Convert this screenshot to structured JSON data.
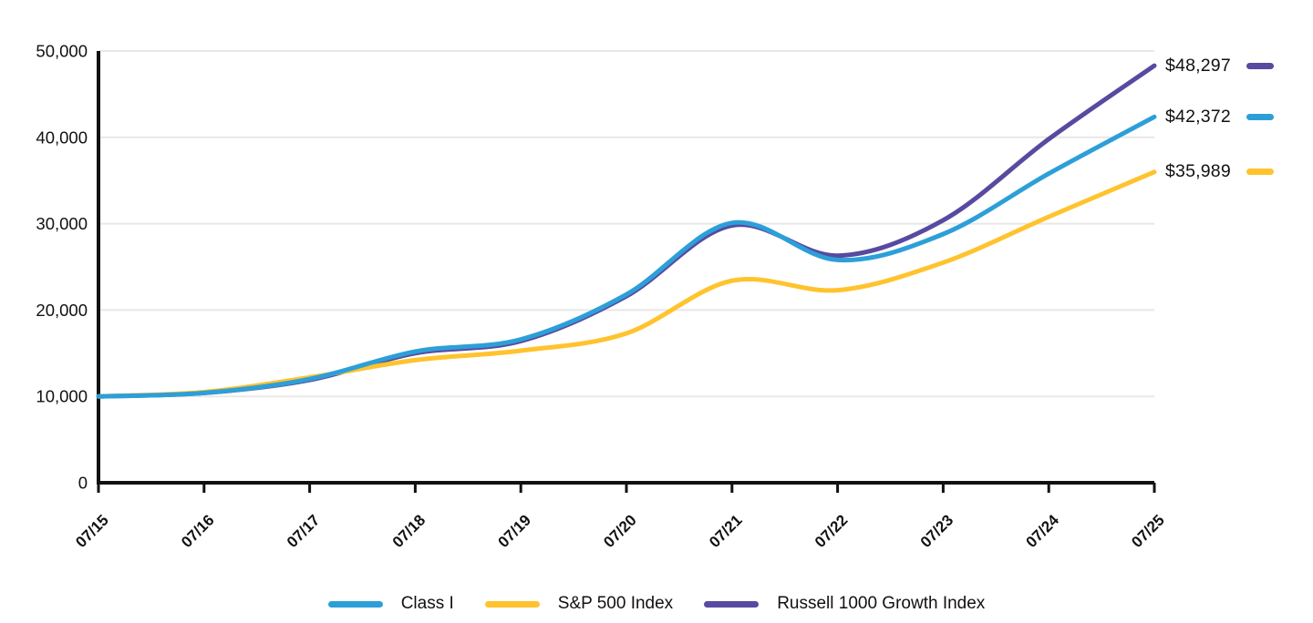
{
  "chart_data": {
    "type": "line",
    "categories": [
      "07/15",
      "07/16",
      "07/17",
      "07/18",
      "07/19",
      "07/20",
      "07/21",
      "07/22",
      "07/23",
      "07/24",
      "07/25"
    ],
    "y_ticks": [
      "0",
      "10,000",
      "20,000",
      "30,000",
      "40,000",
      "50,000"
    ],
    "ylim": [
      0,
      50000
    ],
    "grid": "horizontal",
    "legend_position": "bottom",
    "axis_color": "#111111",
    "gridline_color": "#e8e8e8",
    "series": [
      {
        "name": "Class I",
        "color": "#2D9FD8",
        "values": [
          10000,
          10400,
          12000,
          15200,
          16600,
          21800,
          30100,
          25800,
          28800,
          35800,
          42372
        ],
        "end_label": "$42,372"
      },
      {
        "name": "S&P 500 Index",
        "color": "#FFC32E",
        "values": [
          10000,
          10500,
          12200,
          14200,
          15300,
          17300,
          23400,
          22300,
          25500,
          30800,
          35989
        ],
        "end_label": "$35,989"
      },
      {
        "name": "Russell 1000 Growth Index",
        "color": "#574AA0",
        "values": [
          10000,
          10400,
          11900,
          15000,
          16400,
          21600,
          29800,
          26300,
          30400,
          39800,
          48297
        ],
        "end_label": "$48,297"
      }
    ]
  }
}
